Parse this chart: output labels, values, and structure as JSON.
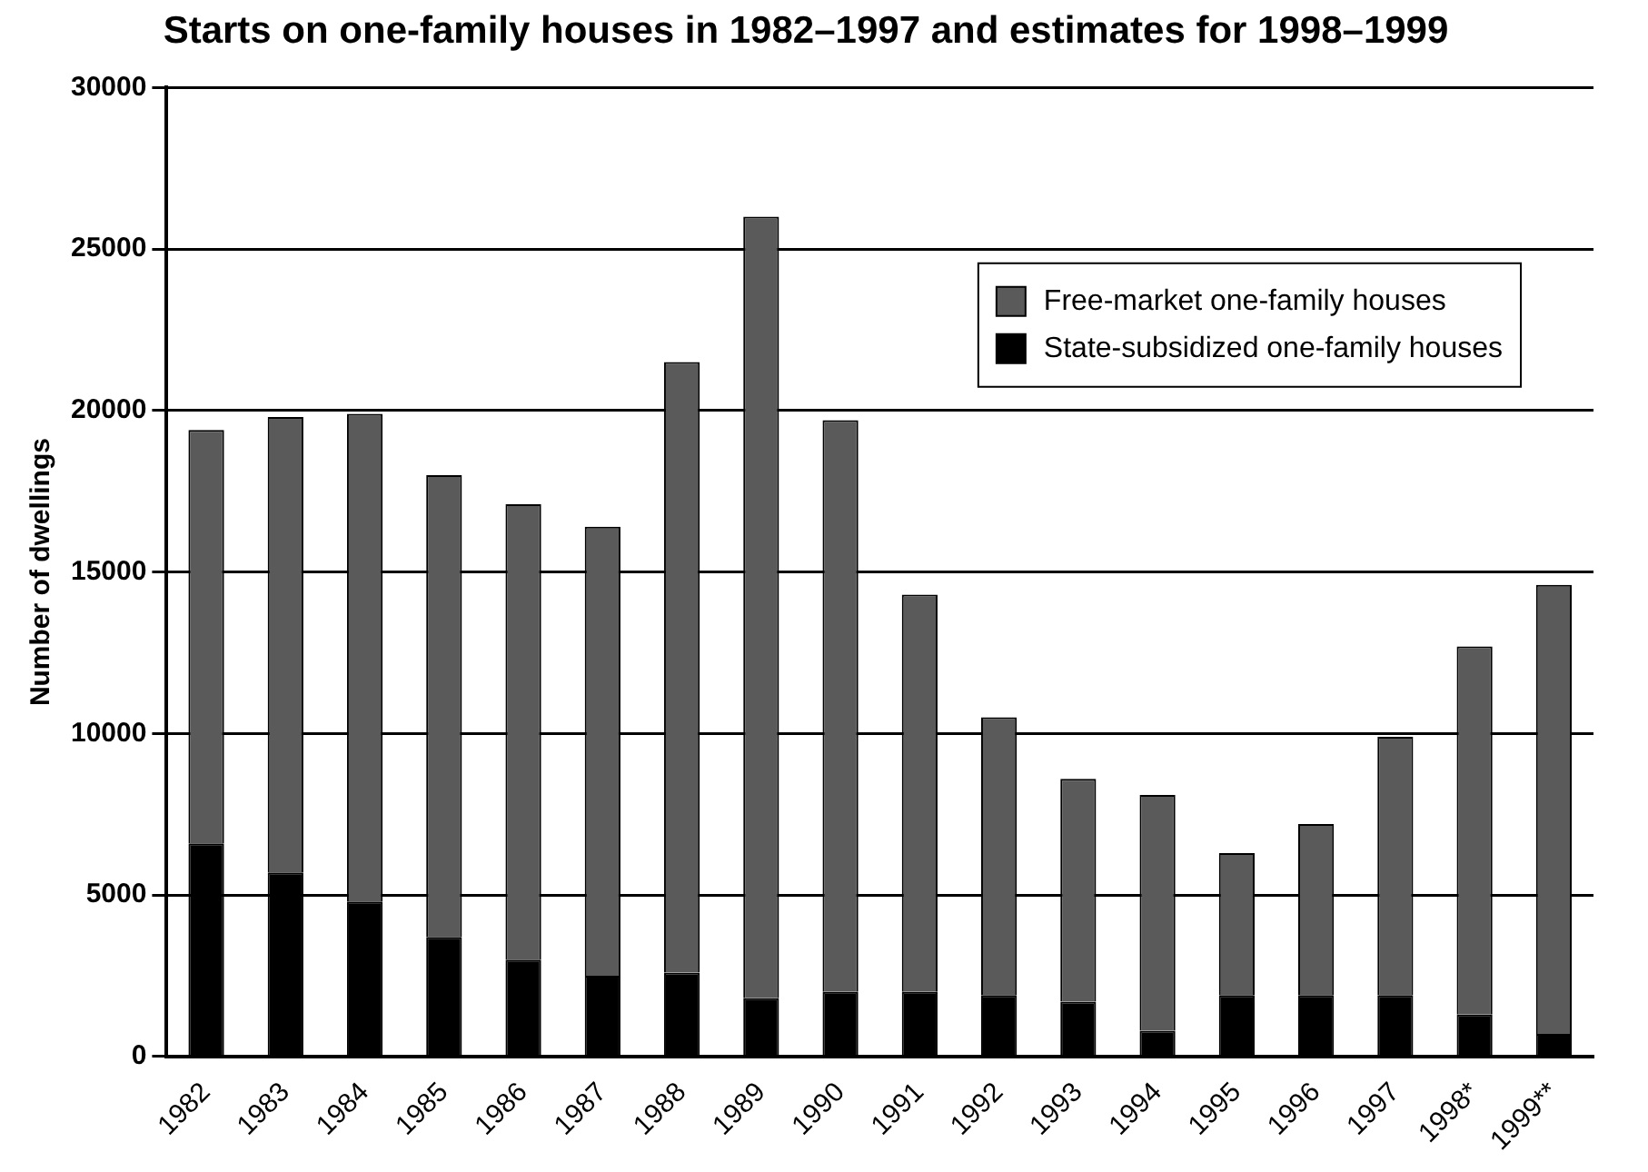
{
  "chart_data": {
    "type": "bar",
    "title": "Starts on one-family houses in 1982–1997 and estimates for 1998–1999",
    "ylabel": "Number of dwellings",
    "categories": [
      "1982",
      "1983",
      "1984",
      "1985",
      "1986",
      "1987",
      "1988",
      "1989",
      "1990",
      "1991",
      "1992",
      "1993",
      "1994",
      "1995",
      "1996",
      "1997",
      "1998*",
      "1999**"
    ],
    "series": [
      {
        "name": "State-subsidized one-family houses",
        "color": "#000000",
        "values": [
          6600,
          5700,
          4800,
          3700,
          3000,
          2500,
          2600,
          1800,
          2000,
          2000,
          1900,
          1700,
          800,
          1900,
          1900,
          1900,
          1300,
          700
        ]
      },
      {
        "name": "Free-market one-family houses",
        "color": "#5a5a5a",
        "values": [
          12800,
          14100,
          15100,
          14300,
          14100,
          13900,
          18900,
          24200,
          17700,
          12300,
          8600,
          6900,
          7300,
          4400,
          5300,
          8000,
          11400,
          13900
        ]
      }
    ],
    "stacked": true,
    "ylim": [
      0,
      30000
    ],
    "yticks": [
      0,
      5000,
      10000,
      15000,
      20000,
      25000,
      30000
    ],
    "grid": "y",
    "legend": "top right"
  }
}
